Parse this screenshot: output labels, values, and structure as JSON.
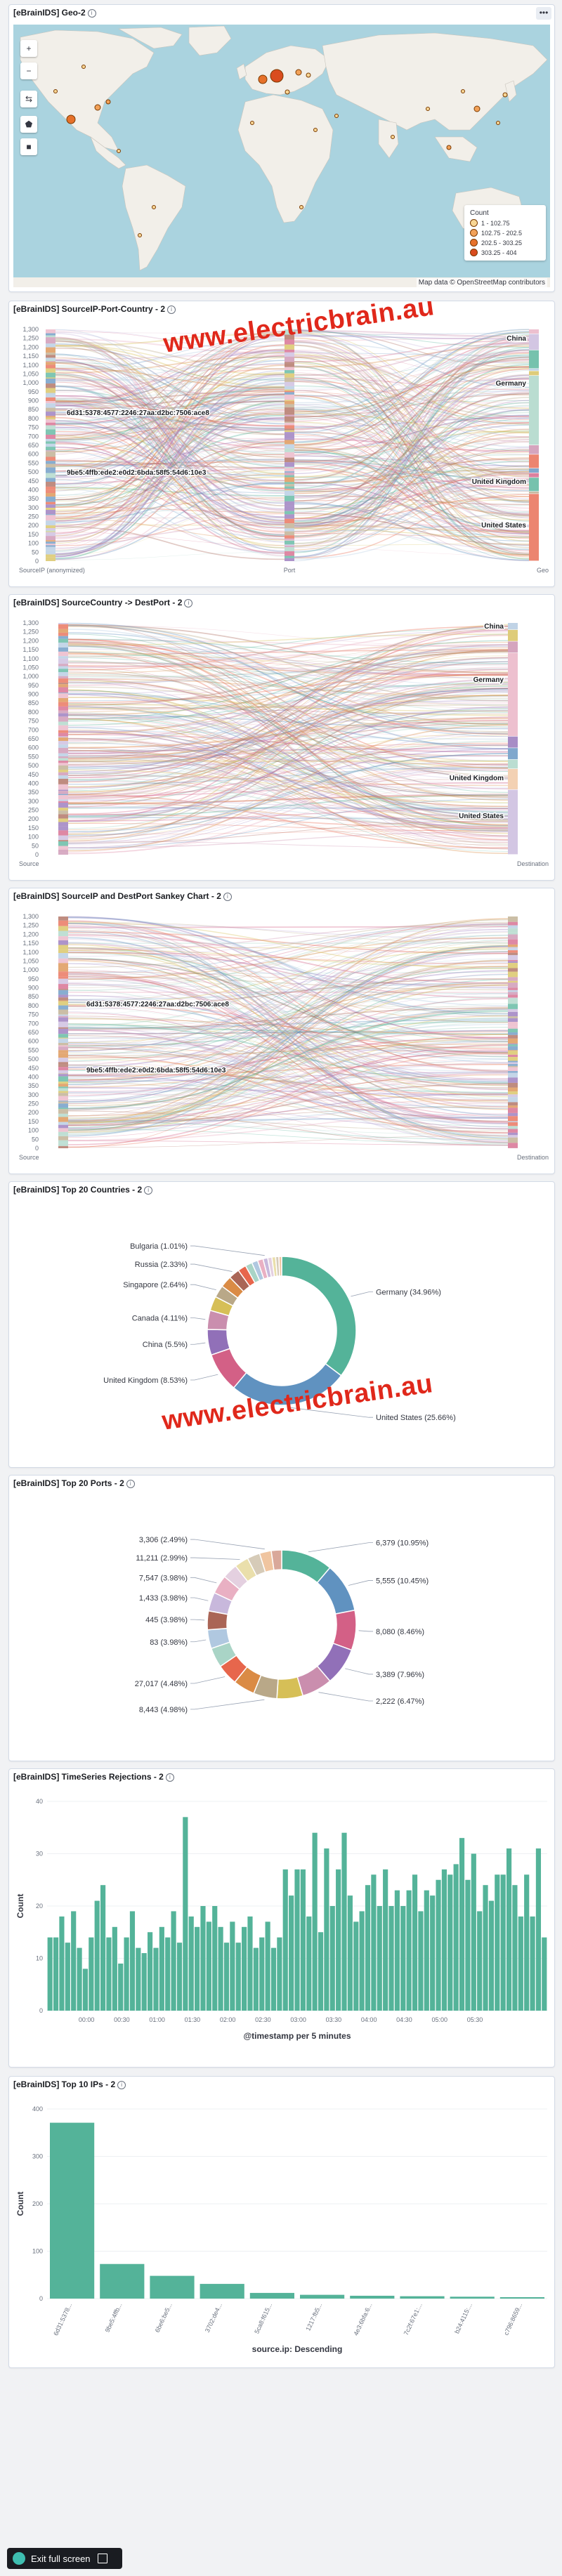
{
  "watermark": "www.electricbrain.au",
  "geo": {
    "title": "[eBrainIDS] Geo-2",
    "menu": "•••",
    "controls": [
      "+",
      "−",
      "⇆",
      "⬟",
      "■"
    ],
    "legend_title": "Count",
    "legend": [
      {
        "label": "1 - 102.75",
        "color": "#f8d694"
      },
      {
        "label": "102.75 - 202.5",
        "color": "#f2a158"
      },
      {
        "label": "202.5 - 303.25",
        "color": "#e6712a"
      },
      {
        "label": "303.25 - 404",
        "color": "#d94c1e"
      }
    ],
    "attribution": "Map data © OpenStreetMap contributors"
  },
  "sankey1": {
    "title": "[eBrainIDS] SourceIP-Port-Country - 2",
    "yticks": [
      "0",
      "50",
      "100",
      "150",
      "200",
      "250",
      "300",
      "350",
      "400",
      "450",
      "500",
      "550",
      "600",
      "650",
      "700",
      "750",
      "800",
      "850",
      "900",
      "950",
      "1,000",
      "1,050",
      "1,100",
      "1,150",
      "1,200",
      "1,250",
      "1,300"
    ],
    "labels": {
      "ip1": "6d31:5378:4577:2246:27aa:d2bc:7506:ace8",
      "ip2": "9be5:4ffb:ede2:e0d2:6bda:58f5:54d6:10e3",
      "china": "China",
      "germany": "Germany",
      "uk": "United Kingdom",
      "us": "United States"
    },
    "axis": [
      "SourceIP (anonymized)",
      "Port",
      "Geo"
    ]
  },
  "sankey2": {
    "title": "[eBrainIDS] SourceCountry -> DestPort - 2",
    "yticks": [
      "0",
      "50",
      "100",
      "150",
      "200",
      "250",
      "300",
      "350",
      "400",
      "450",
      "500",
      "550",
      "600",
      "650",
      "700",
      "750",
      "800",
      "850",
      "900",
      "950",
      "1,000",
      "1,050",
      "1,100",
      "1,150",
      "1,200",
      "1,250",
      "1,300"
    ],
    "labels": {
      "china": "China",
      "germany": "Germany",
      "uk": "United Kingdom",
      "us": "United States"
    },
    "axis": [
      "Source",
      "Destination"
    ]
  },
  "sankey3": {
    "title": "[eBrainIDS] SourceIP and DestPort Sankey Chart - 2",
    "yticks": [
      "0",
      "50",
      "100",
      "150",
      "200",
      "250",
      "300",
      "350",
      "400",
      "450",
      "500",
      "550",
      "600",
      "650",
      "700",
      "750",
      "800",
      "850",
      "900",
      "950",
      "1,000",
      "1,050",
      "1,100",
      "1,150",
      "1,200",
      "1,250",
      "1,300"
    ],
    "labels": {
      "ip1": "6d31:5378:4577:2246:27aa:d2bc:7506:ace8",
      "ip2": "9be5:4ffb:ede2:e0d2:6bda:58f5:54d6:10e3"
    },
    "axis": [
      "Source",
      "Destination"
    ]
  },
  "countries": {
    "title": "[eBrainIDS] Top 20 Countries - 2"
  },
  "ports": {
    "title": "[eBrainIDS] Top 20 Ports - 2"
  },
  "timeseries": {
    "title": "[eBrainIDS] TimeSeries Rejections - 2"
  },
  "topips": {
    "title": "[eBrainIDS] Top 10 IPs - 2"
  },
  "footer": {
    "fullscreen": "Exit full screen"
  },
  "chart_data": [
    {
      "type": "pie",
      "title": "[eBrainIDS] Top 20 Countries - 2",
      "slices": [
        {
          "label": "Germany (34.96%)",
          "value": 34.96,
          "color": "#54b399"
        },
        {
          "label": "United States (25.66%)",
          "value": 25.66,
          "color": "#6092c0"
        },
        {
          "label": "United Kingdom (8.53%)",
          "value": 8.53,
          "color": "#d36086"
        },
        {
          "label": "China (5.5%)",
          "value": 5.5,
          "color": "#9170b8"
        },
        {
          "label": "Canada (4.11%)",
          "value": 4.11,
          "color": "#ca8eae"
        },
        {
          "label": "",
          "value": 3.1,
          "color": "#d6bf57"
        },
        {
          "label": "Singapore (2.64%)",
          "value": 2.64,
          "color": "#b9a888"
        },
        {
          "label": "",
          "value": 2.5,
          "color": "#da8b45"
        },
        {
          "label": "Russia (2.33%)",
          "value": 2.33,
          "color": "#aa6556"
        },
        {
          "label": "",
          "value": 1.8,
          "color": "#e7664c"
        },
        {
          "label": "",
          "value": 1.5,
          "color": "#a9d4c6"
        },
        {
          "label": "",
          "value": 1.3,
          "color": "#b0c8e0"
        },
        {
          "label": "",
          "value": 1.2,
          "color": "#e9b0c3"
        },
        {
          "label": "Bulgaria (1.01%)",
          "value": 1.01,
          "color": "#c8b8dc"
        },
        {
          "label": "",
          "value": 0.9,
          "color": "#e4d0e0"
        },
        {
          "label": "",
          "value": 0.8,
          "color": "#eadfab"
        },
        {
          "label": "",
          "value": 0.7,
          "color": "#d6cbb8"
        },
        {
          "label": "",
          "value": 0.6,
          "color": "#f0c5a0"
        }
      ]
    },
    {
      "type": "pie",
      "title": "[eBrainIDS] Top 20 Ports - 2",
      "slices": [
        {
          "label": "6,379 (10.95%)",
          "value": 10.95,
          "color": "#54b399"
        },
        {
          "label": "5,555 (10.45%)",
          "value": 10.45,
          "color": "#6092c0"
        },
        {
          "label": "8,080 (8.46%)",
          "value": 8.46,
          "color": "#d36086"
        },
        {
          "label": "3,389 (7.96%)",
          "value": 7.96,
          "color": "#9170b8"
        },
        {
          "label": "2,222 (6.47%)",
          "value": 6.47,
          "color": "#ca8eae"
        },
        {
          "label": "",
          "value": 5.5,
          "color": "#d6bf57"
        },
        {
          "label": "8,443 (4.98%)",
          "value": 4.98,
          "color": "#b9a888"
        },
        {
          "label": "",
          "value": 4.6,
          "color": "#da8b45"
        },
        {
          "label": "27,017 (4.48%)",
          "value": 4.48,
          "color": "#e7664c"
        },
        {
          "label": "",
          "value": 4.2,
          "color": "#a9d4c6"
        },
        {
          "label": "83 (3.98%)",
          "value": 3.98,
          "color": "#b0c8e0"
        },
        {
          "label": "445 (3.98%)",
          "value": 3.98,
          "color": "#aa6556"
        },
        {
          "label": "1,433 (3.98%)",
          "value": 3.98,
          "color": "#c8b8dc"
        },
        {
          "label": "7,547 (3.98%)",
          "value": 3.98,
          "color": "#e9b0c3"
        },
        {
          "label": "",
          "value": 3.2,
          "color": "#e4d0e0"
        },
        {
          "label": "11,211 (2.99%)",
          "value": 2.99,
          "color": "#eadfab"
        },
        {
          "label": "",
          "value": 2.7,
          "color": "#d6cbb8"
        },
        {
          "label": "3,306 (2.49%)",
          "value": 2.49,
          "color": "#f0c5a0"
        },
        {
          "label": "",
          "value": 2.2,
          "color": "#d9a89a"
        }
      ]
    },
    {
      "type": "bar",
      "title": "[eBrainIDS] TimeSeries Rejections - 2",
      "xlabel": "@timestamp per 5 minutes",
      "ylabel": "Count",
      "ylim": [
        0,
        40
      ],
      "yticks": [
        0,
        10,
        20,
        30,
        40
      ],
      "xticks": [
        "00:00",
        "00:30",
        "01:00",
        "01:30",
        "02:00",
        "02:30",
        "03:00",
        "03:30",
        "04:00",
        "04:30",
        "05:00",
        "05:30"
      ],
      "color": "#54b399",
      "values": [
        14,
        14,
        18,
        13,
        19,
        12,
        8,
        14,
        21,
        24,
        14,
        16,
        9,
        14,
        19,
        12,
        11,
        15,
        12,
        16,
        14,
        19,
        13,
        37,
        18,
        16,
        20,
        17,
        20,
        16,
        13,
        17,
        13,
        16,
        18,
        12,
        14,
        17,
        12,
        14,
        27,
        22,
        27,
        27,
        18,
        34,
        15,
        31,
        20,
        27,
        34,
        22,
        17,
        19,
        24,
        26,
        20,
        27,
        20,
        23,
        20,
        23,
        26,
        19,
        23,
        22,
        25,
        27,
        26,
        28,
        33,
        25,
        30,
        19,
        24,
        21,
        26,
        26,
        31,
        24,
        18,
        26,
        18,
        31,
        14
      ],
      "bar_start_tick": 0.45,
      "bars_per_tick": 6
    },
    {
      "type": "bar",
      "title": "[eBrainIDS] Top 10 IPs - 2",
      "xlabel": "source.ip: Descending",
      "ylabel": "Count",
      "ylim": [
        0,
        400
      ],
      "yticks": [
        0,
        100,
        200,
        300,
        400
      ],
      "color": "#54b399",
      "categories": [
        "6d31:5378...",
        "9be5:4ffb...",
        "6be6:be5...",
        "3702:de4...",
        "5ca8:f615...",
        "1217:fb5...",
        "4e3:6bfa:6...",
        "7c2f:67e1:...",
        "b24:4115:...",
        "c796:8659..."
      ],
      "values": [
        371,
        73,
        48,
        31,
        12,
        8,
        6,
        5,
        4,
        3
      ]
    }
  ]
}
